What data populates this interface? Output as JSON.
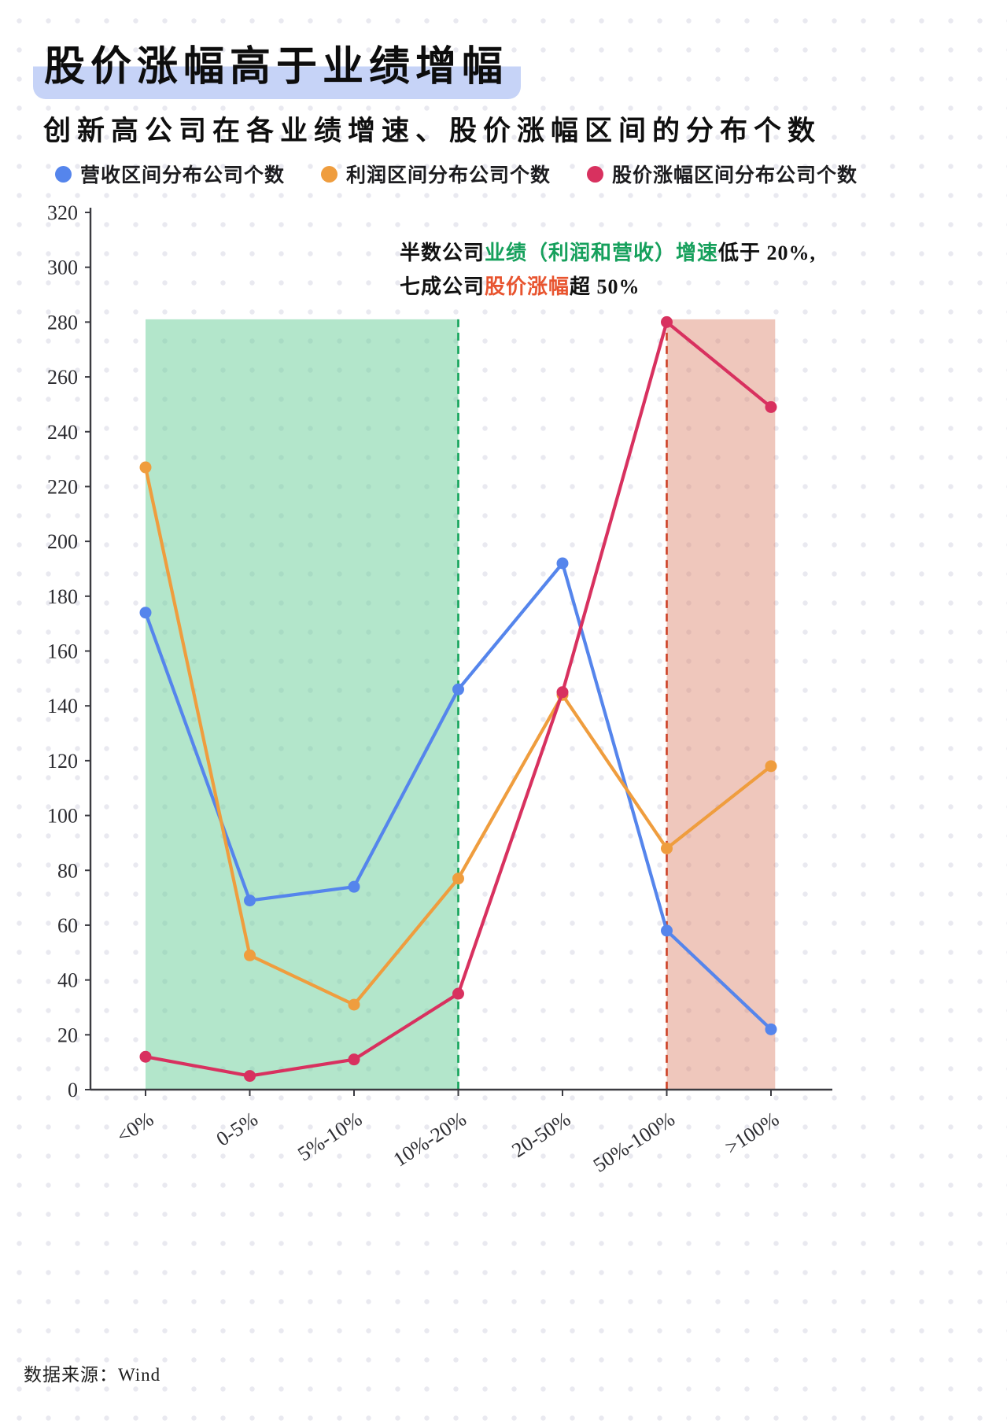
{
  "page": {
    "title": "股价涨幅高于业绩增幅",
    "subtitle": "创新高公司在各业绩增速、股价涨幅区间的分布个数",
    "source": "数据来源：Wind"
  },
  "annotation": {
    "line1": [
      {
        "text": "半数公司",
        "color": "#111111"
      },
      {
        "text": "业绩（利润和营收）增速",
        "color": "#16a05c"
      },
      {
        "text": "低于 20%,",
        "color": "#111111"
      }
    ],
    "line2": [
      {
        "text": "七成公司",
        "color": "#111111"
      },
      {
        "text": "股价涨幅",
        "color": "#e8542f"
      },
      {
        "text": "超 50%",
        "color": "#111111"
      }
    ]
  },
  "chart_data": {
    "type": "line",
    "categories": [
      "<0%",
      "0-5%",
      "5%-10%",
      "10%-20%",
      "20-50%",
      "50%-100%",
      ">100%"
    ],
    "series": [
      {
        "name": "营收区间分布公司个数",
        "color": "#5585ec",
        "values": [
          174,
          69,
          74,
          146,
          192,
          58,
          22
        ]
      },
      {
        "name": "利润区间分布公司个数",
        "color": "#ef9d3e",
        "values": [
          227,
          49,
          31,
          77,
          144,
          88,
          118
        ]
      },
      {
        "name": "股价涨幅区间分布公司个数",
        "color": "#d8315f",
        "values": [
          12,
          5,
          11,
          35,
          145,
          280,
          249
        ]
      }
    ],
    "ylim": [
      0,
      320
    ],
    "ytick_step": 20,
    "legend_position": "top",
    "grid": false,
    "regions": [
      {
        "from": 0,
        "to": 3,
        "top": 281,
        "fill": "rgba(104,205,152,0.5)",
        "dash_at": 3,
        "dash_color": "#12a35a"
      },
      {
        "from": 5,
        "to": 6.04,
        "top": 281,
        "fill": "rgba(217,122,95,0.42)",
        "dash_at": 5,
        "dash_color": "#cd4226"
      }
    ]
  }
}
